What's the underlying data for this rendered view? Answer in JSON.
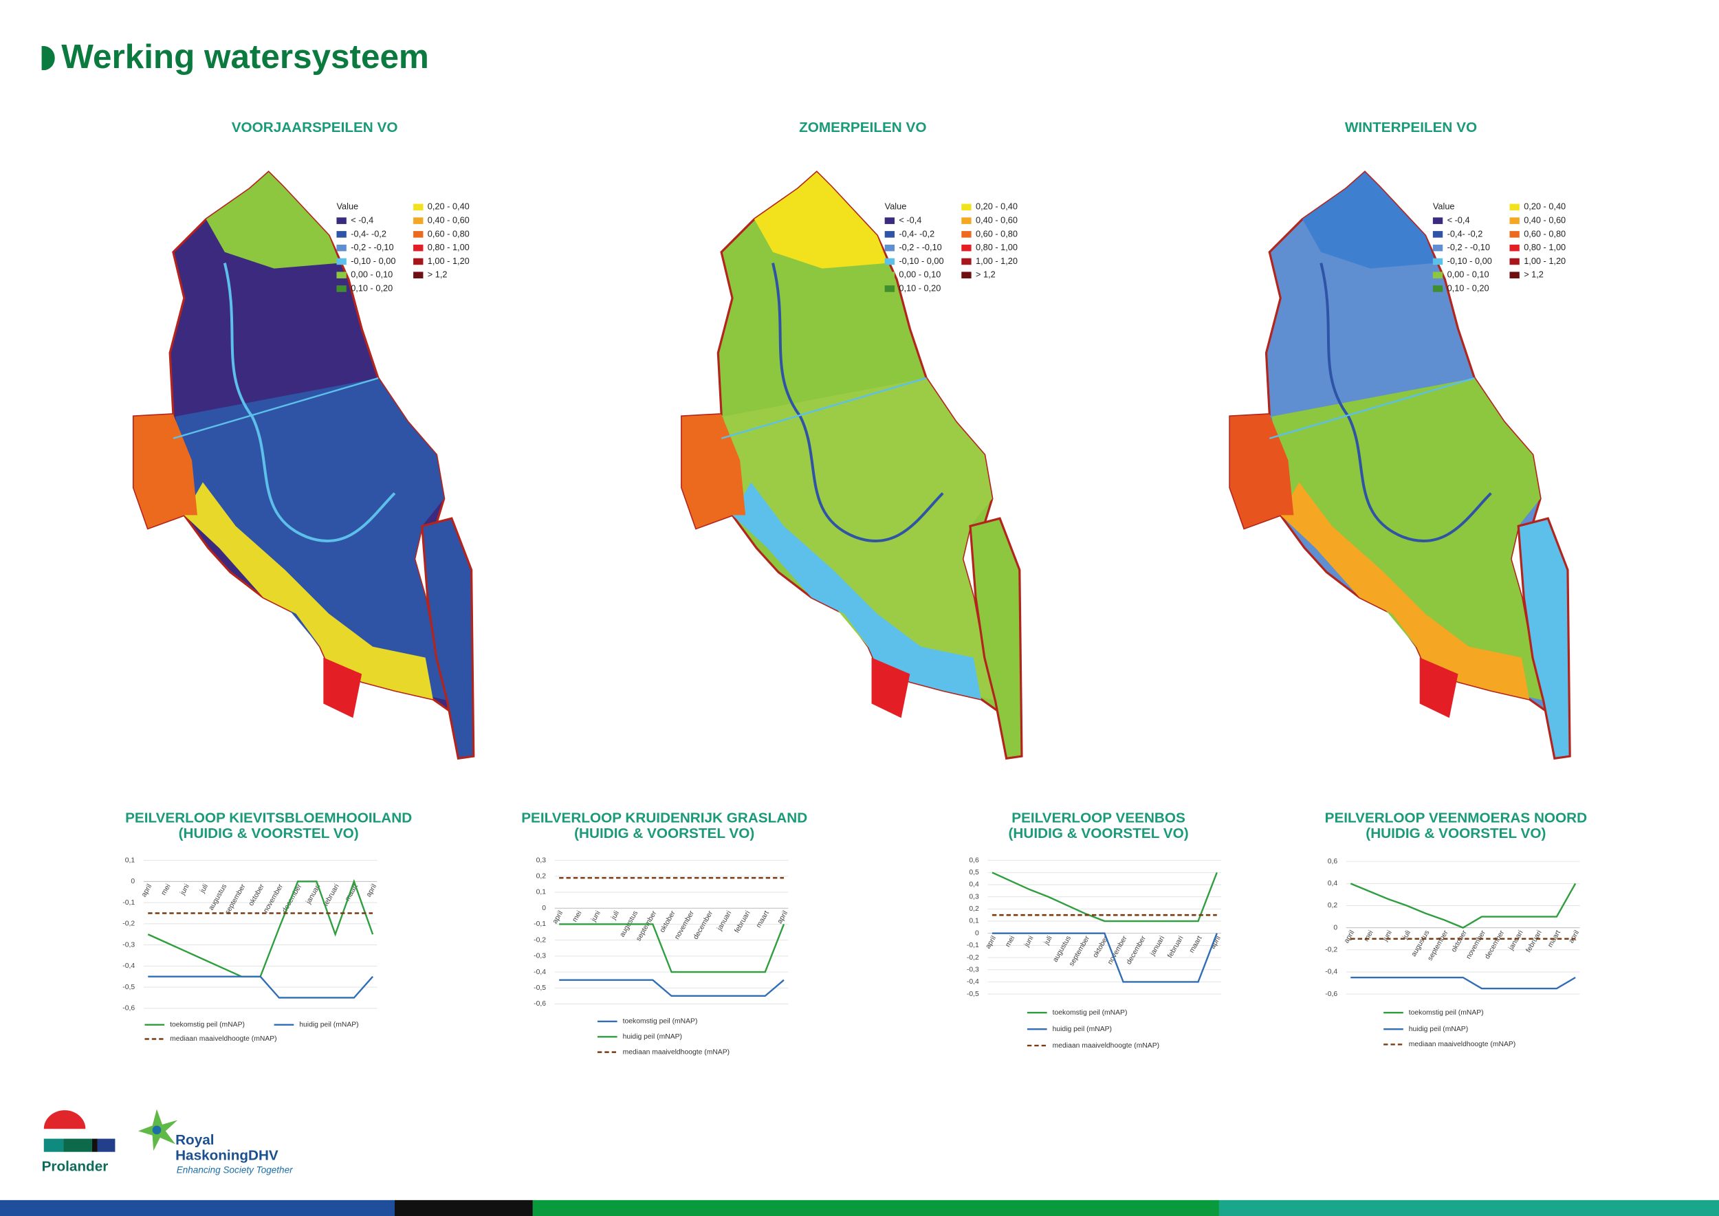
{
  "header": {
    "title": "Werking watersysteem"
  },
  "maps": [
    {
      "title": "VOORJAARSPEILEN VO"
    },
    {
      "title": "ZOMERPEILEN VO"
    },
    {
      "title": "WINTERPEILEN VO"
    }
  ],
  "legend": {
    "title": "Value",
    "items": [
      {
        "label": "< -0,4",
        "color": "#3b2a7e"
      },
      {
        "label": "-0,4- -0,2",
        "color": "#2f54a6"
      },
      {
        "label": "-0,2 - -0,10",
        "color": "#5f8fd0"
      },
      {
        "label": "-0,10 - 0,00",
        "color": "#5cc0ea"
      },
      {
        "label": "0,00 - 0,10",
        "color": "#8dc63f"
      },
      {
        "label": "0,10 - 0,20",
        "color": "#3f8f2e"
      },
      {
        "label": "0,20 - 0,40",
        "color": "#f2e21e"
      },
      {
        "label": "0,40 - 0,60",
        "color": "#f5a623"
      },
      {
        "label": "0,60 - 0,80",
        "color": "#ec6a1e"
      },
      {
        "label": "0,80 - 1,00",
        "color": "#e31e24"
      },
      {
        "label": "1,00 - 1,20",
        "color": "#a8151b"
      },
      {
        "label": "> 1,2",
        "color": "#6e0f12"
      }
    ]
  },
  "chart_data": [
    {
      "type": "line",
      "title": "PEILVERLOOP KIEVITSBLOEMHOOILAND",
      "subtitle": "(HUIDIG & VOORSTEL VO)",
      "categories": [
        "april",
        "mei",
        "juni",
        "juli",
        "augustus",
        "september",
        "oktober",
        "november",
        "december",
        "januari",
        "februari",
        "maart",
        "april"
      ],
      "series": [
        {
          "name": "toekomstig peil (mNAP)",
          "color": "#2e9e3e",
          "values": [
            -0.25,
            -0.29,
            -0.33,
            -0.37,
            -0.41,
            -0.45,
            -0.45,
            -0.22,
            0,
            0,
            -0.25,
            0,
            -0.25
          ]
        },
        {
          "name": "huidig peil (mNAP)",
          "color": "#2f6db5",
          "values": [
            -0.45,
            -0.45,
            -0.45,
            -0.45,
            -0.45,
            -0.45,
            -0.45,
            -0.55,
            -0.55,
            -0.55,
            -0.55,
            -0.55,
            -0.45
          ]
        },
        {
          "name": "mediaan maaiveldhoogte (mNAP)",
          "color": "#7a3b10",
          "dashed": true,
          "values": [
            -0.15,
            -0.15,
            -0.15,
            -0.15,
            -0.15,
            -0.15,
            -0.15,
            -0.15,
            -0.15,
            -0.15,
            -0.15,
            -0.15,
            -0.15
          ]
        }
      ],
      "ylim": [
        -0.6,
        0.1
      ],
      "yticks": [
        {
          "value": 0.1,
          "label": "0,1"
        },
        0,
        {
          "value": -0.1,
          "label": "-0,1"
        },
        {
          "value": -0.2,
          "label": "-0,2"
        },
        {
          "value": -0.3,
          "label": "-0,3"
        },
        {
          "value": -0.4,
          "label": "-0,4"
        },
        {
          "value": -0.5,
          "label": "-0,5"
        },
        {
          "value": -0.6,
          "label": "-0,6"
        }
      ],
      "grid": true
    },
    {
      "type": "line",
      "title": "PEILVERLOOP KRUIDENRIJK GRASLAND",
      "subtitle": "(HUIDIG & VOORSTEL VO)",
      "categories": [
        "april",
        "mei",
        "juni",
        "juli",
        "augustus",
        "september",
        "oktober",
        "november",
        "december",
        "januari",
        "februari",
        "maart",
        "april"
      ],
      "series": [
        {
          "name": "toekomstig peil (mNAP)",
          "color": "#2f6db5",
          "values": [
            -0.45,
            -0.45,
            -0.45,
            -0.45,
            -0.45,
            -0.45,
            -0.55,
            -0.55,
            -0.55,
            -0.55,
            -0.55,
            -0.55,
            -0.45
          ]
        },
        {
          "name": "huidig peil (mNAP)",
          "color": "#2e9e3e",
          "values": [
            -0.1,
            -0.1,
            -0.1,
            -0.1,
            -0.1,
            -0.1,
            -0.4,
            -0.4,
            -0.4,
            -0.4,
            -0.4,
            -0.4,
            -0.1
          ]
        },
        {
          "name": "mediaan maaiveldhoogte (mNAP)",
          "color": "#7a3b10",
          "dashed": true,
          "values": [
            0.19,
            0.19,
            0.19,
            0.19,
            0.19,
            0.19,
            0.19,
            0.19,
            0.19,
            0.19,
            0.19,
            0.19,
            0.19
          ]
        }
      ],
      "ylim": [
        -0.6,
        0.3
      ],
      "yticks": [
        {
          "value": 0.3,
          "label": "0,3"
        },
        {
          "value": 0.2,
          "label": "0,2"
        },
        {
          "value": 0.1,
          "label": "0,1"
        },
        0,
        {
          "value": -0.1,
          "label": "-0,1"
        },
        {
          "value": -0.2,
          "label": "-0,2"
        },
        {
          "value": -0.3,
          "label": "-0,3"
        },
        {
          "value": -0.4,
          "label": "-0,4"
        },
        {
          "value": -0.5,
          "label": "-0,5"
        },
        {
          "value": -0.6,
          "label": "-0,6"
        }
      ],
      "grid": true
    },
    {
      "type": "line",
      "title": "PEILVERLOOP VEENBOS",
      "subtitle": "(HUIDIG & VOORSTEL VO)",
      "categories": [
        "april",
        "mei",
        "juni",
        "juli",
        "augustus",
        "september",
        "oktober",
        "november",
        "december",
        "januari",
        "februari",
        "maart",
        "april"
      ],
      "series": [
        {
          "name": "toekomstig peil (mNAP)",
          "color": "#2e9e3e",
          "values": [
            0.5,
            0.43,
            0.36,
            0.3,
            0.23,
            0.16,
            0.1,
            0.1,
            0.1,
            0.1,
            0.1,
            0.1,
            0.5
          ]
        },
        {
          "name": "huidig peil (mNAP)",
          "color": "#2f6db5",
          "values": [
            0,
            0,
            0,
            0,
            0,
            0,
            0,
            -0.4,
            -0.4,
            -0.4,
            -0.4,
            -0.4,
            0
          ]
        },
        {
          "name": "mediaan maaiveldhoogte (mNAP)",
          "color": "#7a3b10",
          "dashed": true,
          "values": [
            0.15,
            0.15,
            0.15,
            0.15,
            0.15,
            0.15,
            0.15,
            0.15,
            0.15,
            0.15,
            0.15,
            0.15,
            0.15
          ]
        }
      ],
      "ylim": [
        -0.5,
        0.6
      ],
      "yticks": [
        {
          "value": 0.6,
          "label": "0,6"
        },
        {
          "value": 0.5,
          "label": "0,5"
        },
        {
          "value": 0.4,
          "label": "0,4"
        },
        {
          "value": 0.3,
          "label": "0,3"
        },
        {
          "value": 0.2,
          "label": "0,2"
        },
        {
          "value": 0.1,
          "label": "0,1"
        },
        0,
        {
          "value": -0.1,
          "label": "-0,1"
        },
        {
          "value": -0.2,
          "label": "-0,2"
        },
        {
          "value": -0.3,
          "label": "-0,3"
        },
        {
          "value": -0.4,
          "label": "-0,4"
        },
        {
          "value": -0.5,
          "label": "-0,5"
        }
      ],
      "grid": true
    },
    {
      "type": "line",
      "title": "PEILVERLOOP VEENMOERAS NOORD",
      "subtitle": "(HUIDIG & VOORSTEL VO)",
      "categories": [
        "april",
        "mei",
        "juni",
        "juli",
        "augustus",
        "september",
        "oktober",
        "november",
        "december",
        "januari",
        "februari",
        "maart",
        "april"
      ],
      "series": [
        {
          "name": "toekomstig peil (mNAP)",
          "color": "#2e9e3e",
          "values": [
            0.4,
            0.33,
            0.26,
            0.2,
            0.13,
            0.07,
            0,
            0.1,
            0.1,
            0.1,
            0.1,
            0.1,
            0.4
          ]
        },
        {
          "name": "huidig peil (mNAP)",
          "color": "#2f6db5",
          "values": [
            -0.45,
            -0.45,
            -0.45,
            -0.45,
            -0.45,
            -0.45,
            -0.45,
            -0.55,
            -0.55,
            -0.55,
            -0.55,
            -0.55,
            -0.45
          ]
        },
        {
          "name": "mediaan maaiveldhoogte (mNAP)",
          "color": "#7a3b10",
          "dashed": true,
          "values": [
            -0.1,
            -0.1,
            -0.1,
            -0.1,
            -0.1,
            -0.1,
            -0.1,
            -0.1,
            -0.1,
            -0.1,
            -0.1,
            -0.1,
            -0.1
          ]
        }
      ],
      "ylim": [
        -0.6,
        0.6
      ],
      "yticks": [
        {
          "value": 0.6,
          "label": "0,6"
        },
        {
          "value": 0.4,
          "label": "0,4"
        },
        {
          "value": 0.2,
          "label": "0,2"
        },
        0,
        {
          "value": -0.2,
          "label": "-0,2"
        },
        {
          "value": -0.4,
          "label": "-0,4"
        },
        {
          "value": -0.6,
          "label": "-0,6"
        }
      ],
      "grid": true
    }
  ],
  "logos": {
    "prolander": "Prolander",
    "rhdhv_line1": "Royal",
    "rhdhv_line2": "HaskoningDHV",
    "rhdhv_tagline": "Enhancing Society Together"
  }
}
